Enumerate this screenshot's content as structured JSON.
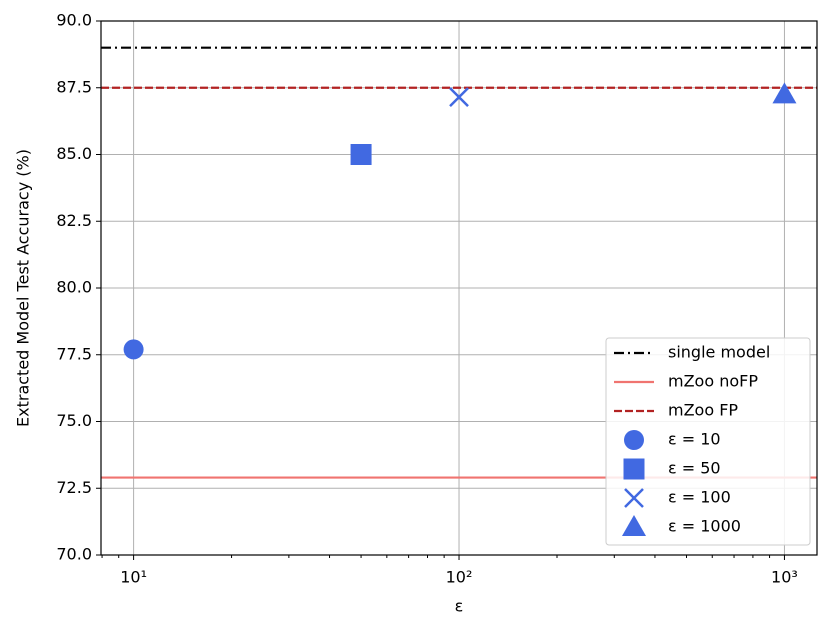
{
  "chart_data": {
    "type": "scatter",
    "xlabel": "ε",
    "ylabel": "Extracted Model Test Accuracy (%)",
    "xscale": "log",
    "xlim": [
      7.94,
      1259
    ],
    "ylim": [
      70,
      90
    ],
    "xticks": [
      {
        "value": 10,
        "label": "10¹"
      },
      {
        "value": 100,
        "label": "10²"
      },
      {
        "value": 1000,
        "label": "10³"
      }
    ],
    "xminorticks": [
      8,
      9,
      20,
      30,
      40,
      50,
      60,
      70,
      80,
      90,
      200,
      300,
      400,
      500,
      600,
      700,
      800,
      900
    ],
    "yticks": [
      {
        "value": 70,
        "label": "70.0"
      },
      72.5,
      {
        "value": 75,
        "label": "75.0"
      },
      77.5,
      {
        "value": 80,
        "label": "80.0"
      },
      82.5,
      {
        "value": 85,
        "label": "85.0"
      },
      87.5,
      {
        "value": 90,
        "label": "90.0"
      }
    ],
    "grid": true,
    "legend": "lower right",
    "hlines": [
      {
        "name": "single model",
        "color": "#000000",
        "style": "dashdot",
        "value": 89.0
      },
      {
        "name": "mZoo noFP",
        "color": "#f07470",
        "style": "solid",
        "value": 72.9
      },
      {
        "name": "mZoo FP",
        "color": "#b22222",
        "style": "dashed",
        "value": 87.5
      }
    ],
    "series": [
      {
        "name": "ε = 10",
        "color": "#4169e1",
        "marker": "circle",
        "x": [
          10
        ],
        "values": [
          77.7
        ]
      },
      {
        "name": "ε = 50",
        "color": "#4169e1",
        "marker": "square",
        "x": [
          50
        ],
        "values": [
          85.0
        ]
      },
      {
        "name": "ε = 100",
        "color": "#4169e1",
        "marker": "x",
        "x": [
          100
        ],
        "values": [
          87.15
        ]
      },
      {
        "name": "ε = 1000",
        "color": "#4169e1",
        "marker": "triangle",
        "x": [
          1000
        ],
        "values": [
          87.25
        ]
      }
    ]
  }
}
